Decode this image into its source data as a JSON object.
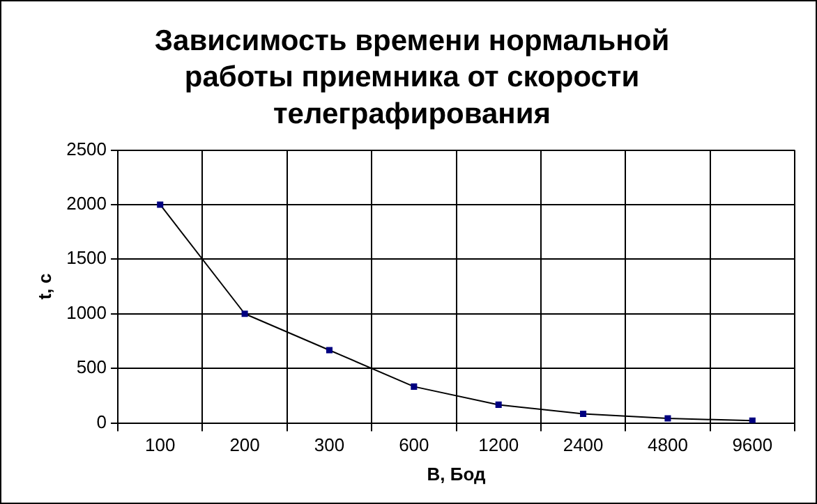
{
  "chart_data": {
    "type": "line",
    "title": "Зависимость времени нормальной работы приемника от скорости телеграфирования",
    "xlabel": "B, Бод",
    "ylabel": "t, c",
    "categories": [
      "100",
      "200",
      "300",
      "600",
      "1200",
      "2400",
      "4800",
      "9600"
    ],
    "series": [
      {
        "color": "#000000",
        "values": [
          2000,
          1000,
          667,
          333,
          167,
          83,
          42,
          21
        ]
      }
    ],
    "ylim": [
      0,
      2500
    ],
    "yticks": [
      0,
      500,
      1000,
      1500,
      2000,
      2500
    ],
    "grid": true,
    "legend": false,
    "marker": "square",
    "line_style": "solid"
  }
}
